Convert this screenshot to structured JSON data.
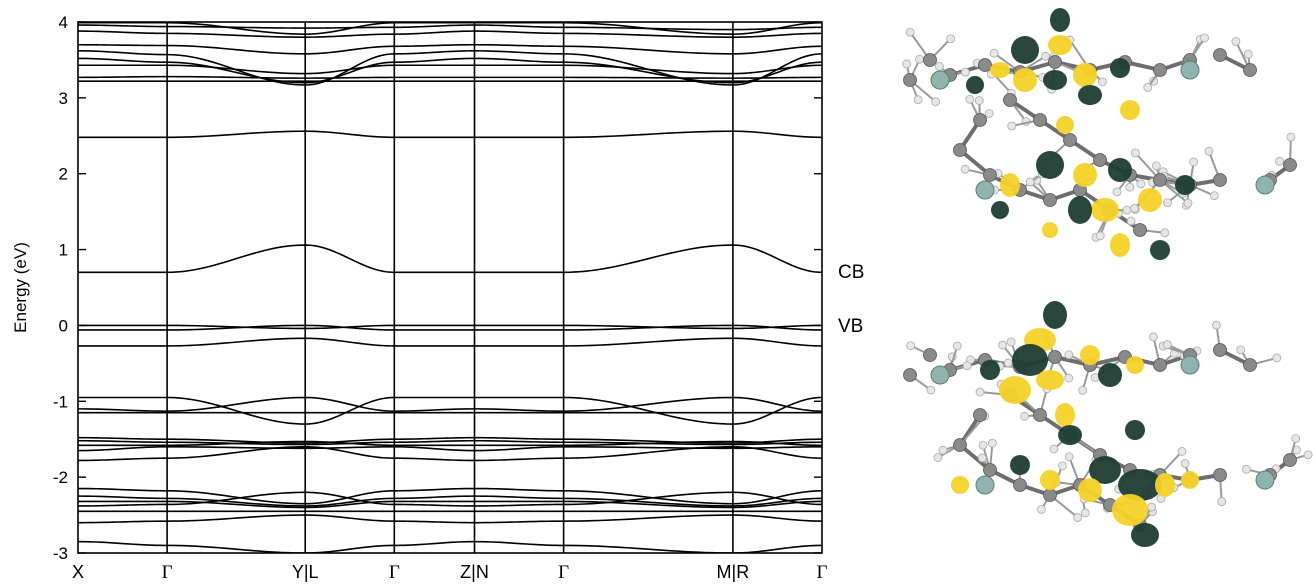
{
  "chart_data": {
    "type": "line",
    "title": "",
    "xlabel": "",
    "ylabel": "Energy (eV)",
    "ylim": [
      -3,
      4
    ],
    "yticks": [
      -3,
      -2,
      -1,
      0,
      1,
      2,
      3,
      4
    ],
    "ytick_labels": [
      "-3",
      "-2",
      "-1",
      "0",
      "1",
      "2",
      "3",
      "4"
    ],
    "kpath_labels": [
      "X",
      "Γ",
      "Y|L",
      "Γ",
      "Z|N",
      "Γ",
      "M|R",
      "Γ"
    ],
    "kpath_positions": [
      0,
      1,
      2.55,
      3.55,
      4.45,
      5.45,
      7.35,
      8.35
    ],
    "grid": false,
    "bands": [
      {
        "y": [
          3.99,
          3.99,
          3.84,
          3.99,
          3.99,
          3.99,
          3.84,
          3.99
        ]
      },
      {
        "y": [
          3.96,
          3.94,
          3.92,
          3.93,
          3.96,
          3.93,
          3.9,
          3.93
        ]
      },
      {
        "y": [
          3.88,
          3.85,
          3.8,
          3.84,
          3.88,
          3.85,
          3.8,
          3.85
        ]
      },
      {
        "y": [
          3.7,
          3.69,
          3.58,
          3.68,
          3.7,
          3.68,
          3.58,
          3.68
        ]
      },
      {
        "y": [
          3.62,
          3.57,
          3.17,
          3.58,
          3.62,
          3.58,
          3.17,
          3.58
        ]
      },
      {
        "y": [
          3.52,
          3.47,
          3.2,
          3.47,
          3.52,
          3.47,
          3.2,
          3.47
        ]
      },
      {
        "y": [
          3.43,
          3.43,
          3.32,
          3.43,
          3.43,
          3.43,
          3.32,
          3.43
        ]
      },
      {
        "y": [
          3.27,
          3.28,
          3.26,
          3.27,
          3.27,
          3.27,
          3.26,
          3.27
        ]
      },
      {
        "y": [
          3.22,
          3.22,
          3.22,
          3.22,
          3.22,
          3.22,
          3.22,
          3.22
        ]
      },
      {
        "y": [
          2.48,
          2.48,
          2.56,
          2.48,
          2.48,
          2.48,
          2.56,
          2.48
        ]
      },
      {
        "y": [
          0.7,
          0.7,
          1.06,
          0.7,
          0.7,
          0.7,
          1.06,
          0.7
        ]
      },
      {
        "y": [
          0.0,
          0.0,
          -0.04,
          0.0,
          0.0,
          0.0,
          -0.04,
          0.0
        ]
      },
      {
        "y": [
          -0.06,
          -0.06,
          0.0,
          -0.06,
          -0.06,
          -0.06,
          0.0,
          -0.06
        ]
      },
      {
        "y": [
          -0.27,
          -0.27,
          -0.17,
          -0.27,
          -0.27,
          -0.27,
          -0.17,
          -0.27
        ]
      },
      {
        "y": [
          -0.95,
          -0.95,
          -1.3,
          -0.95,
          -0.95,
          -0.95,
          -1.3,
          -0.95
        ]
      },
      {
        "y": [
          -1.1,
          -1.13,
          -0.95,
          -1.13,
          -1.1,
          -1.13,
          -0.95,
          -1.13
        ]
      },
      {
        "y": [
          -1.15,
          -1.15,
          -1.15,
          -1.15,
          -1.15,
          -1.15,
          -1.15,
          -1.15
        ]
      },
      {
        "y": [
          -1.48,
          -1.5,
          -1.55,
          -1.5,
          -1.48,
          -1.5,
          -1.55,
          -1.5
        ]
      },
      {
        "y": [
          -1.52,
          -1.54,
          -1.57,
          -1.54,
          -1.52,
          -1.54,
          -1.57,
          -1.54
        ]
      },
      {
        "y": [
          -1.58,
          -1.58,
          -1.53,
          -1.58,
          -1.58,
          -1.58,
          -1.53,
          -1.58
        ]
      },
      {
        "y": [
          -1.65,
          -1.6,
          -1.62,
          -1.6,
          -1.65,
          -1.6,
          -1.62,
          -1.6
        ]
      },
      {
        "y": [
          -1.78,
          -1.75,
          -1.6,
          -1.75,
          -1.78,
          -1.75,
          -1.6,
          -1.75
        ]
      },
      {
        "y": [
          -2.15,
          -2.18,
          -2.35,
          -2.18,
          -2.15,
          -2.18,
          -2.35,
          -2.18
        ]
      },
      {
        "y": [
          -2.25,
          -2.28,
          -2.38,
          -2.28,
          -2.25,
          -2.28,
          -2.38,
          -2.28
        ]
      },
      {
        "y": [
          -2.32,
          -2.32,
          -2.4,
          -2.32,
          -2.32,
          -2.32,
          -2.4,
          -2.32
        ]
      },
      {
        "y": [
          -2.38,
          -2.36,
          -2.2,
          -2.36,
          -2.38,
          -2.36,
          -2.2,
          -2.36
        ]
      },
      {
        "y": [
          -2.45,
          -2.45,
          -2.45,
          -2.45,
          -2.45,
          -2.45,
          -2.45,
          -2.45
        ]
      },
      {
        "y": [
          -2.6,
          -2.58,
          -2.5,
          -2.58,
          -2.6,
          -2.58,
          -2.5,
          -2.58
        ]
      },
      {
        "y": [
          -2.85,
          -2.9,
          -3.0,
          -2.9,
          -2.85,
          -2.9,
          -3.0,
          -2.9
        ]
      }
    ]
  },
  "band_labels": {
    "cb": "CB",
    "vb": "VB"
  },
  "colors": {
    "line": "#000000",
    "orbital_dark": "#1f3d33",
    "orbital_yellow": "#f5d327",
    "carbon": "#8a8a8a",
    "hydrogen": "#e6e6e6",
    "silicon": "#8fb3ad"
  }
}
